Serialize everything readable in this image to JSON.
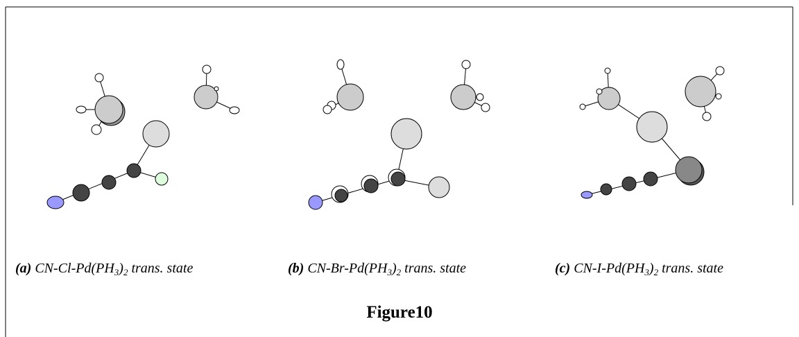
{
  "captions": [
    {
      "label": "(a)",
      "formula": "CN-Cl-Pd(PH",
      "sub1": "3",
      "mid": ")",
      "sub2": "2",
      "suffix": " trans. state"
    },
    {
      "label": "(b)",
      "formula": "CN-Br-Pd(PH",
      "sub1": "3",
      "mid": ")",
      "sub2": "2",
      "suffix": " trans. state"
    },
    {
      "label": "(c)",
      "formula": "CN-I-Pd(PH",
      "sub1": "3",
      "mid": ")",
      "sub2": "2",
      "suffix": " trans. state"
    }
  ],
  "figure_title": "Figure10"
}
